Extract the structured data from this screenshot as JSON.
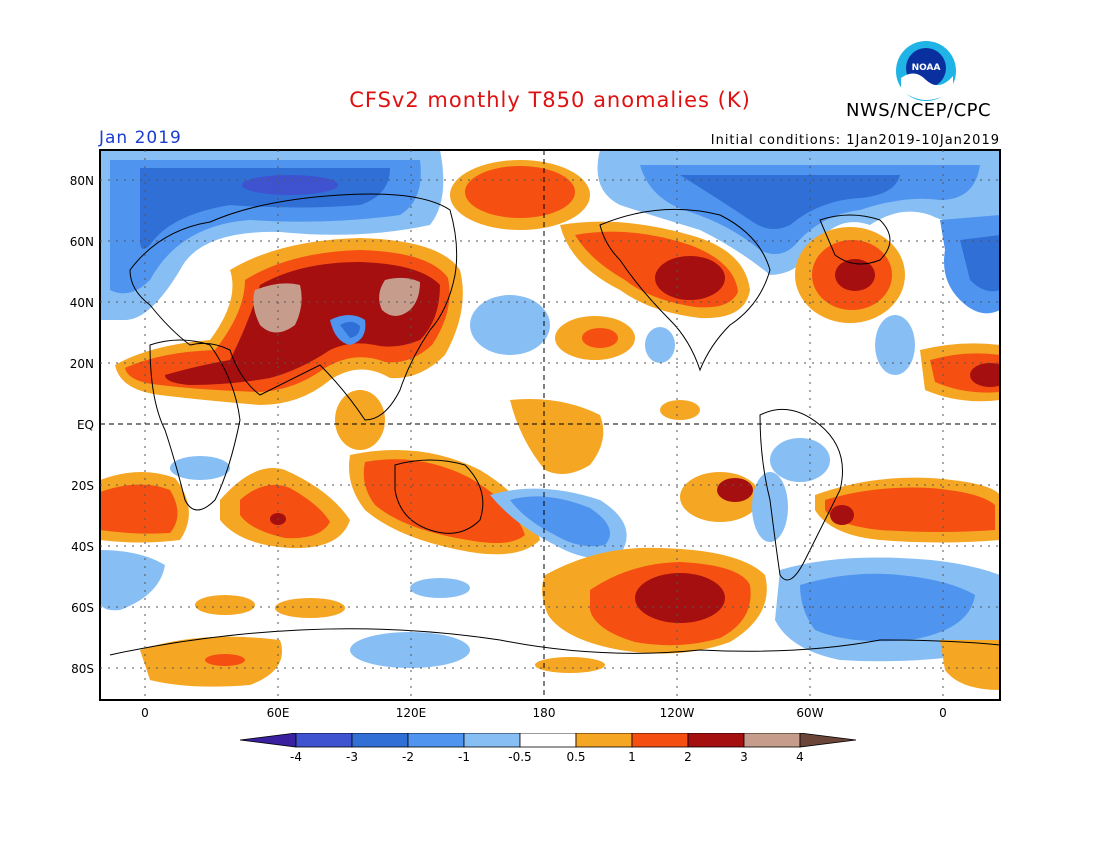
{
  "title": "CFSv2 monthly T850 anomalies (K)",
  "organization": "NWS/NCEP/CPC",
  "logo_text": "NOAA",
  "month_label": "Jan 2019",
  "initial_conditions": "Initial conditions: 1Jan2019-10Jan2019",
  "lat_labels": [
    "80N",
    "60N",
    "40N",
    "20N",
    "EQ",
    "20S",
    "40S",
    "60S",
    "80S"
  ],
  "lon_labels": [
    "0",
    "60E",
    "120E",
    "180",
    "120W",
    "60W",
    "0"
  ],
  "colorbar": {
    "labels": [
      "-4",
      "-3",
      "-2",
      "-1",
      "-0.5",
      "0.5",
      "1",
      "2",
      "3",
      "4"
    ],
    "colors": [
      "#3a1f9e",
      "#3f52cf",
      "#2f6fd6",
      "#4f94ef",
      "#87bff5",
      "#ffffff",
      "#f5a623",
      "#f54f12",
      "#a50f0f",
      "#c69c8c",
      "#6b4538"
    ]
  },
  "legend_colors": {
    "pos_05_1": "#f5a623",
    "pos_1_2": "#f54f12",
    "pos_2_3": "#a50f0f",
    "pos_3_4": "#c69c8c",
    "neg_05_1": "#87bff5",
    "neg_1_2": "#4f94ef",
    "neg_2_3": "#2f6fd6",
    "neg_3_4": "#3f52cf"
  }
}
